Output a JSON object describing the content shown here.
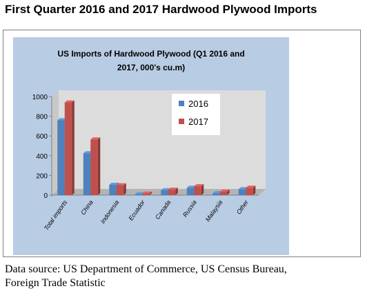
{
  "page": {
    "heading": "First Quarter 2016 and 2017 Hardwood Plywood Imports",
    "source_line1": "Data source: US Department of Commerce, US Census Bureau,",
    "source_line2": "Foreign Trade Statistic"
  },
  "colors": {
    "panel_background": "#b8cce4",
    "plot_background": "#dcdcdc",
    "series_2016": "#4f81bd",
    "series_2017": "#c0504d"
  },
  "chart_data": {
    "type": "bar",
    "title_line1": "US Imports of Hardwood Plywood (Q1 2016 and",
    "title_line2": "2017, 000's cu.m)",
    "categories": [
      "Total imports",
      "China",
      "Indonesia",
      "Ecuador",
      "Canada",
      "Russia",
      "Malaysia",
      "Other"
    ],
    "series": [
      {
        "name": "2016",
        "values": [
          760,
          425,
          105,
          10,
          50,
          75,
          20,
          60
        ]
      },
      {
        "name": "2017",
        "values": [
          940,
          565,
          100,
          15,
          55,
          90,
          35,
          75
        ]
      }
    ],
    "yticks": [
      "0",
      "200",
      "400",
      "600",
      "800",
      "1000"
    ],
    "ylim": [
      0,
      1000
    ],
    "grid": false,
    "legend_position": "top-right",
    "three_d": true
  }
}
